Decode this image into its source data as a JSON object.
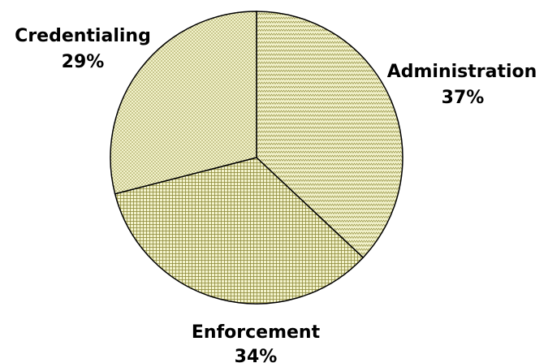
{
  "chart_data": {
    "type": "pie",
    "slices": [
      {
        "label": "Administration",
        "value": 37,
        "value_label": "37%",
        "pattern": "zigzag"
      },
      {
        "label": "Enforcement",
        "value": 34,
        "value_label": "34%",
        "pattern": "grid"
      },
      {
        "label": "Credentialing",
        "value": 29,
        "value_label": "29%",
        "pattern": "dots"
      }
    ],
    "colors": {
      "fill": "#f3f3cc",
      "pattern": "#8e8a3a",
      "outline": "#000000"
    },
    "legend": "none"
  }
}
